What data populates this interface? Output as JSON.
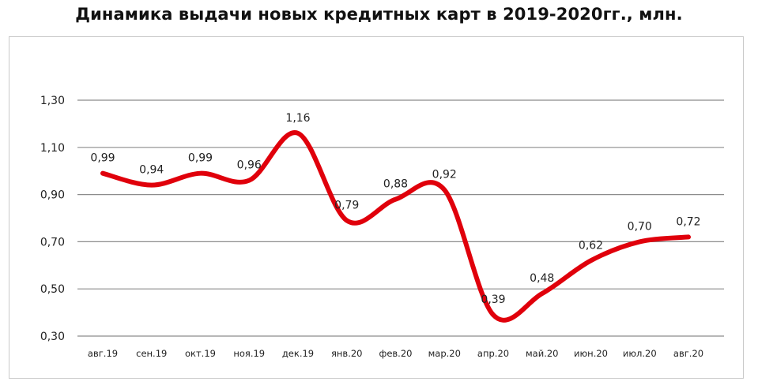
{
  "chart_data": {
    "type": "line",
    "title": "Динамика выдачи новых кредитных карт в 2019-2020гг., млн.",
    "categories": [
      "авг.19",
      "сен.19",
      "окт.19",
      "ноя.19",
      "дек.19",
      "янв.20",
      "фев.20",
      "мар.20",
      "апр.20",
      "май.20",
      "июн.20",
      "июл.20",
      "авг.20"
    ],
    "series": [
      {
        "values": [
          0.99,
          0.94,
          0.99,
          0.96,
          1.16,
          0.79,
          0.88,
          0.92,
          0.39,
          0.48,
          0.62,
          0.7,
          0.72
        ]
      }
    ],
    "data_labels": [
      "0,99",
      "0,94",
      "0,99",
      "0,96",
      "1,16",
      "0,79",
      "0,88",
      "0,92",
      "0,39",
      "0,48",
      "0,62",
      "0,70",
      "0,72"
    ],
    "yticks": [
      0.3,
      0.5,
      0.7,
      0.9,
      1.1,
      1.3
    ],
    "ytick_labels": [
      "0,30",
      "0,50",
      "0,70",
      "0,90",
      "1,10",
      "1,30"
    ],
    "ylim": [
      0.3,
      1.3
    ],
    "xlabel": "",
    "ylabel": "",
    "grid": true,
    "legend": "none",
    "line_color": "#e0000b",
    "grid_color": "#8c8c8c"
  }
}
